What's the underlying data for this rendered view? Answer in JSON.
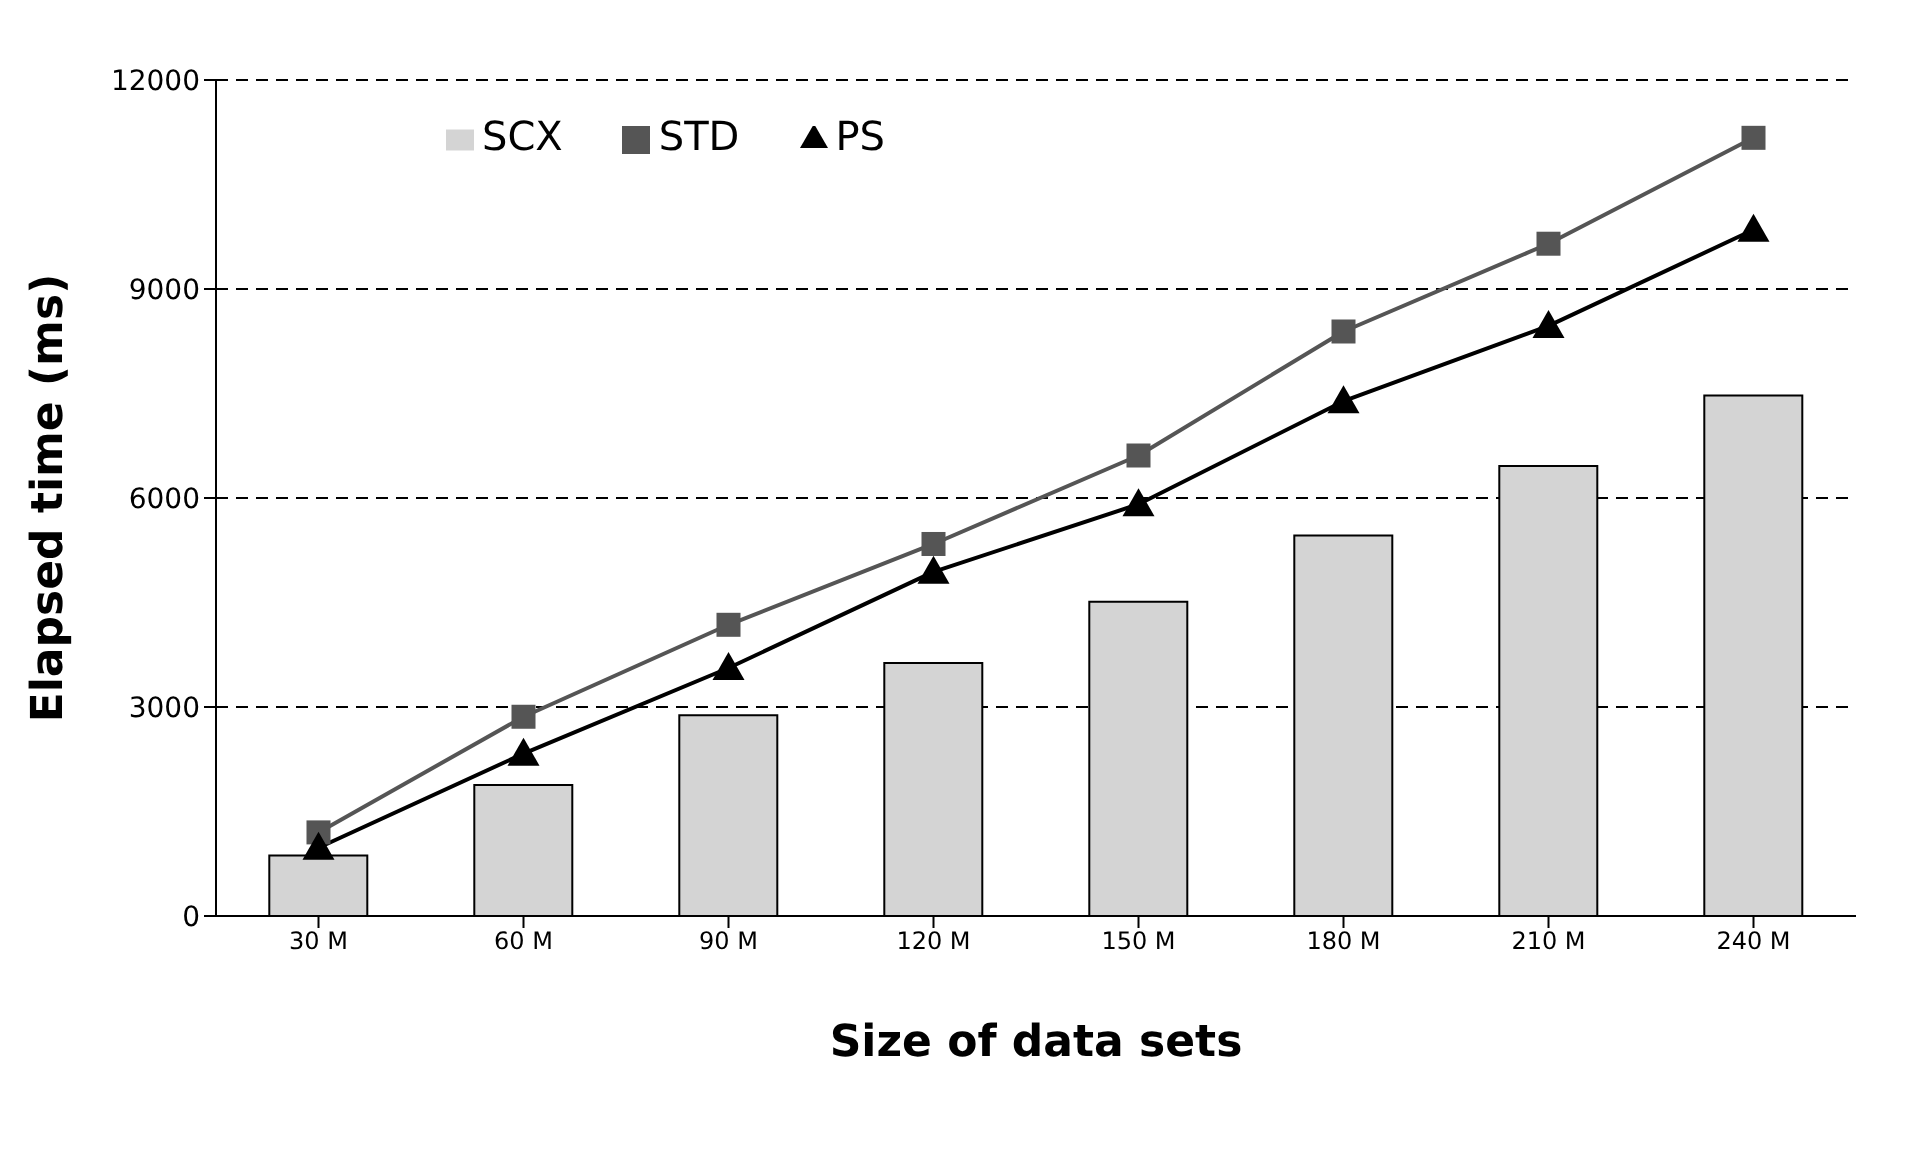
{
  "chart_data": {
    "type": "bar",
    "xlabel": "Size of data sets",
    "ylabel": "Elapsed time (ms)",
    "categories": [
      "30 M",
      "60 M",
      "90 M",
      "120 M",
      "150 M",
      "180 M",
      "210 M",
      "240 M"
    ],
    "series": [
      {
        "name": "SCX",
        "color": "#d4d4d4",
        "values": [
          870,
          1880,
          2880,
          3630,
          4510,
          5460,
          6460,
          7470
        ]
      },
      {
        "name": "STD",
        "type": "line",
        "color": "#555555",
        "marker": "square",
        "values": [
          1200,
          2860,
          4180,
          5340,
          6610,
          8390,
          9650,
          11170
        ]
      },
      {
        "name": "PS",
        "type": "line",
        "color": "#000000",
        "marker": "triangle",
        "values": [
          980,
          2330,
          3560,
          4940,
          5910,
          7390,
          8470,
          9850
        ]
      }
    ],
    "ylim": [
      0,
      12000
    ],
    "yticks": [
      0,
      3000,
      6000,
      9000,
      12000
    ],
    "grid": "y",
    "legend": "top left"
  }
}
